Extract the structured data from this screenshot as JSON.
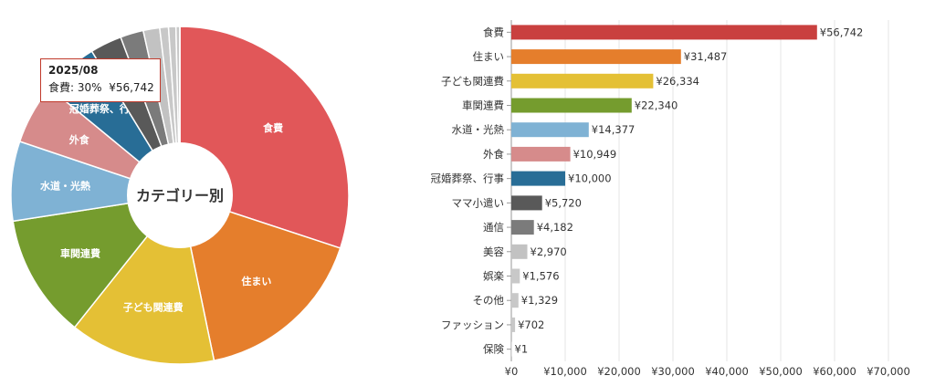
{
  "chart_data": [
    {
      "type": "pie",
      "center_label": "カテゴリー別",
      "categories": [
        "食費",
        "住まい",
        "子ども関連費",
        "車関連費",
        "水道・光熱",
        "外食",
        "冠婚葬祭、行事",
        "ママ小遣い",
        "通信",
        "美容",
        "娯楽",
        "その他",
        "ファッション",
        "保険"
      ],
      "values": [
        56742,
        31487,
        26334,
        22340,
        14377,
        10949,
        10000,
        5720,
        4182,
        2970,
        1576,
        1329,
        702,
        1
      ],
      "slice_labels": [
        "食費",
        "住まい",
        "子ども関連費",
        "車関連費",
        "水道・光熱",
        "外食",
        "冠婚葬祭、行事",
        "",
        "",
        "",
        "",
        "",
        "",
        ""
      ],
      "colors": [
        "#e15759",
        "#e57e2c",
        "#e4c035",
        "#759c2e",
        "#7fb2d4",
        "#d68b8b",
        "#286d96",
        "#595959",
        "#7b7b7b",
        "#c2c2c2",
        "#c8c8c8",
        "#c8c8c8",
        "#c8c8c8",
        "#c8c8c8"
      ],
      "tooltip": {
        "title": "2025/08",
        "category": "食費",
        "percent": "30%",
        "value": "¥56,742"
      }
    },
    {
      "type": "bar",
      "orientation": "horizontal",
      "categories": [
        "食費",
        "住まい",
        "子ども関連費",
        "車関連費",
        "水道・光熱",
        "外食",
        "冠婚葬祭、行事",
        "ママ小遣い",
        "通信",
        "美容",
        "娯楽",
        "その他",
        "ファッション",
        "保険"
      ],
      "values": [
        56742,
        31487,
        26334,
        22340,
        14377,
        10949,
        10000,
        5720,
        4182,
        2970,
        1576,
        1329,
        702,
        1
      ],
      "value_labels": [
        "¥56,742",
        "¥31,487",
        "¥26,334",
        "¥22,340",
        "¥14,377",
        "¥10,949",
        "¥10,000",
        "¥5,720",
        "¥4,182",
        "¥2,970",
        "¥1,576",
        "¥1,329",
        "¥702",
        "¥1"
      ],
      "colors": [
        "#c9403f",
        "#e57e2c",
        "#e4c035",
        "#759c2e",
        "#7fb2d4",
        "#d68b8b",
        "#286d96",
        "#595959",
        "#7b7b7b",
        "#c2c2c2",
        "#c8c8c8",
        "#c8c8c8",
        "#c8c8c8",
        "#c8c8c8"
      ],
      "xlim": [
        0,
        70000
      ],
      "xticks": [
        0,
        10000,
        20000,
        30000,
        40000,
        50000,
        60000,
        70000
      ],
      "xtick_labels": [
        "¥0",
        "¥10,000",
        "¥20,000",
        "¥30,000",
        "¥40,000",
        "¥50,000",
        "¥60,000",
        "¥70,000"
      ],
      "grid": true
    }
  ]
}
